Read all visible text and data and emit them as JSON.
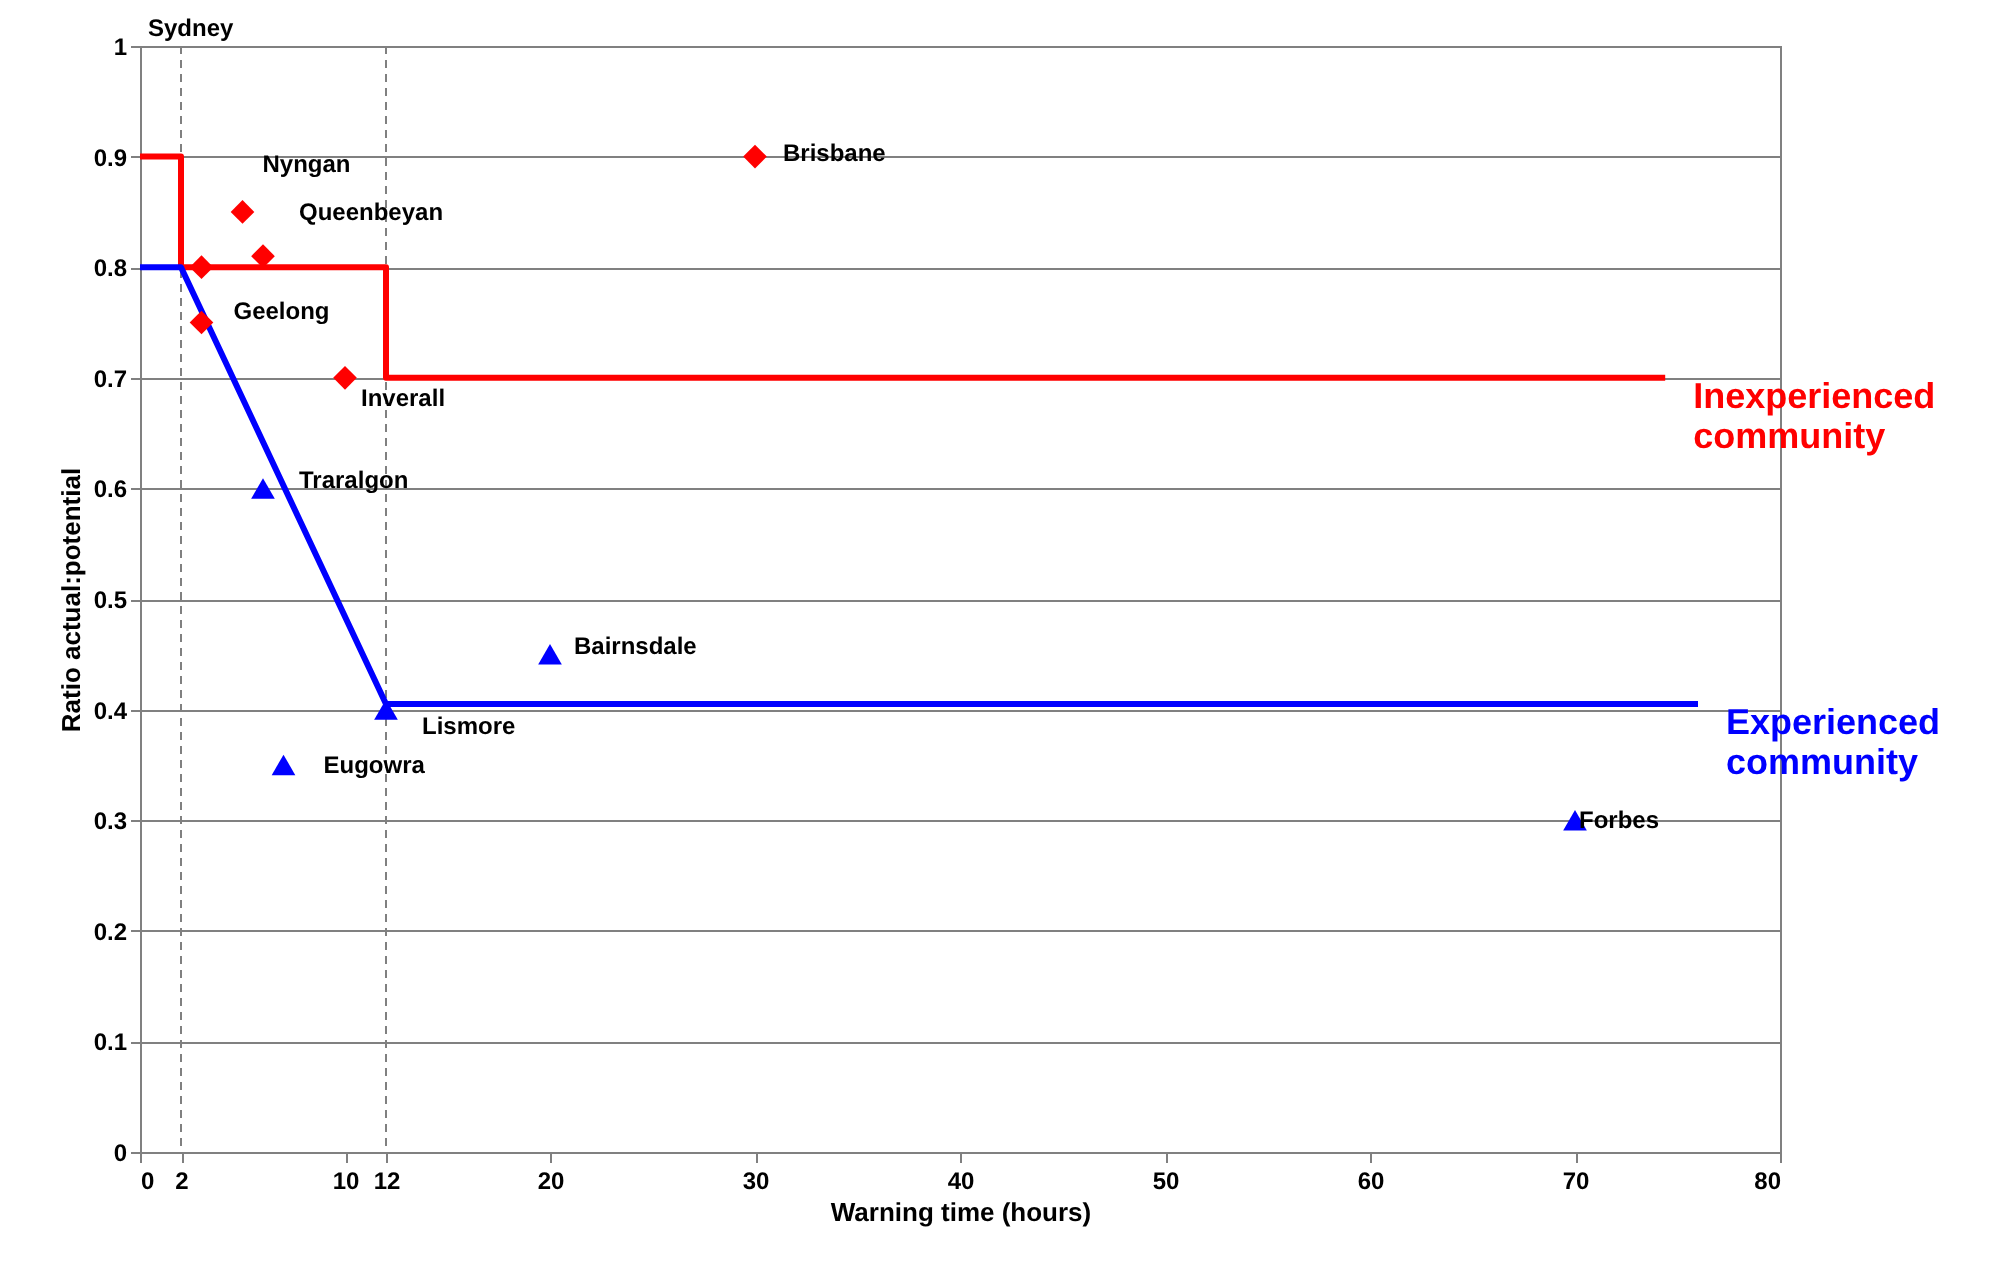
{
  "chart_data": {
    "type": "line",
    "xlabel": "Warning time (hours)",
    "ylabel": "Ratio actual:potential",
    "xlim": [
      0,
      80
    ],
    "xticks": [
      0,
      2,
      10,
      12,
      20,
      30,
      40,
      50,
      60,
      70,
      80
    ],
    "ylim": [
      0,
      1
    ],
    "yticks": [
      0,
      0.1,
      0.2,
      0.3,
      0.4,
      0.5,
      0.6,
      0.7,
      0.8,
      0.9,
      1
    ],
    "grid": "y",
    "series": [
      {
        "name": "Inexperienced community",
        "color": "#ff0000",
        "marker": "none",
        "x": [
          0,
          2,
          2,
          12,
          12,
          74.4
        ],
        "values": [
          0.9,
          0.9,
          0.8,
          0.8,
          0.7,
          0.7
        ]
      },
      {
        "name": "Experienced community",
        "color": "#0000ff",
        "marker": "none",
        "x": [
          0,
          2,
          12,
          76
        ],
        "values": [
          0.8,
          0.8,
          0.405,
          0.405
        ]
      },
      {
        "type": "scatter",
        "color": "#ff0000",
        "marker": "diamond",
        "x": [
          3,
          5,
          6,
          3,
          10,
          30
        ],
        "values": [
          0.8,
          0.85,
          0.81,
          0.75,
          0.7,
          0.9
        ]
      },
      {
        "type": "scatter",
        "color": "#0000ff",
        "marker": "triangle",
        "x": [
          6,
          20,
          12,
          7,
          70
        ],
        "values": [
          0.6,
          0.45,
          0.4,
          0.35,
          0.3
        ]
      }
    ],
    "ref_lines": [
      {
        "axis": "x",
        "value": 2,
        "color": "#808080",
        "line_style": "dashed"
      },
      {
        "axis": "x",
        "value": 12,
        "color": "#808080",
        "line_style": "dashed"
      }
    ],
    "annotations": [
      "Sydney",
      {
        "text": "Nyngan",
        "x": 5,
        "y": 0.85
      },
      {
        "text": "Queenbeyan",
        "x": 6,
        "y": 0.81
      },
      {
        "text": "Geelong",
        "x": 3,
        "y": 0.75
      },
      {
        "text": "Inverall",
        "x": 10,
        "y": 0.7
      },
      {
        "text": "Brisbane",
        "x": 30,
        "y": 0.9
      },
      {
        "text": "Traralgon",
        "x": 6,
        "y": 0.6
      },
      {
        "text": "Bairnsdale",
        "x": 20,
        "y": 0.45
      },
      {
        "text": "Lismore",
        "x": 12,
        "y": 0.4
      },
      {
        "text": "Eugowra",
        "x": 7,
        "y": 0.35
      },
      {
        "text": "Forbes",
        "x": 70,
        "y": 0.3
      }
    ]
  }
}
